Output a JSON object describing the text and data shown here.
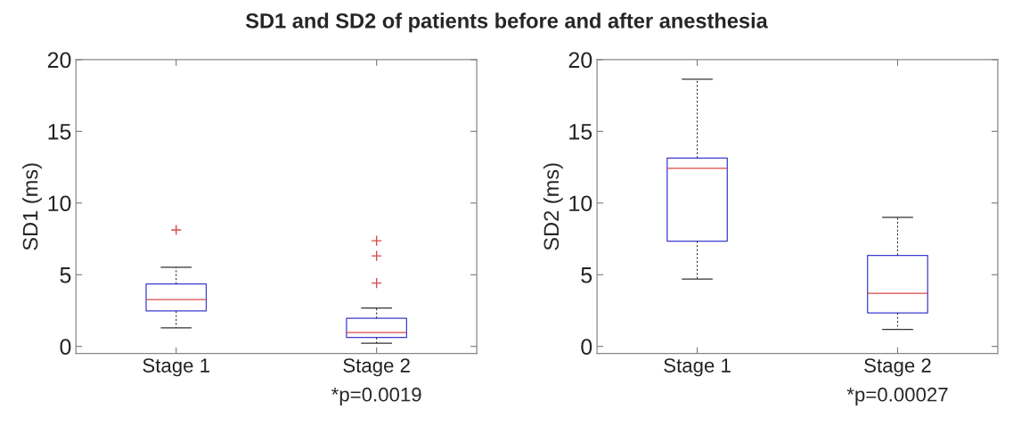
{
  "chart_data": [
    {
      "type": "box",
      "title": "SD1 and SD2 of patients before and after anesthesia",
      "ylabel": "SD1 (ms)",
      "categories": [
        "Stage 1",
        "Stage 2"
      ],
      "boxes": [
        {
          "low": 1.3,
          "q1": 2.47,
          "median": 3.27,
          "q3": 4.35,
          "high": 5.52,
          "outliers": [
            8.12
          ]
        },
        {
          "low": 0.22,
          "q1": 0.62,
          "median": 0.97,
          "q3": 1.96,
          "high": 2.67,
          "outliers": [
            7.37,
            6.31,
            4.42
          ]
        }
      ],
      "ylim": [
        -0.5,
        20
      ],
      "yticks": [
        0,
        5,
        10,
        15,
        20
      ],
      "annotations": [
        "*p=0.0019"
      ],
      "grid": false
    },
    {
      "type": "box",
      "ylabel": "SD2 (ms)",
      "categories": [
        "Stage 1",
        "Stage 2"
      ],
      "boxes": [
        {
          "low": 4.7,
          "q1": 7.34,
          "median": 12.42,
          "q3": 13.13,
          "high": 18.64
        },
        {
          "low": 1.18,
          "q1": 2.34,
          "median": 3.7,
          "q3": 6.35,
          "high": 9.0
        }
      ],
      "ylim": [
        -0.5,
        20
      ],
      "yticks": [
        0,
        5,
        10,
        15,
        20
      ],
      "annotations": [
        "*p=0.00027"
      ],
      "grid": false
    }
  ]
}
